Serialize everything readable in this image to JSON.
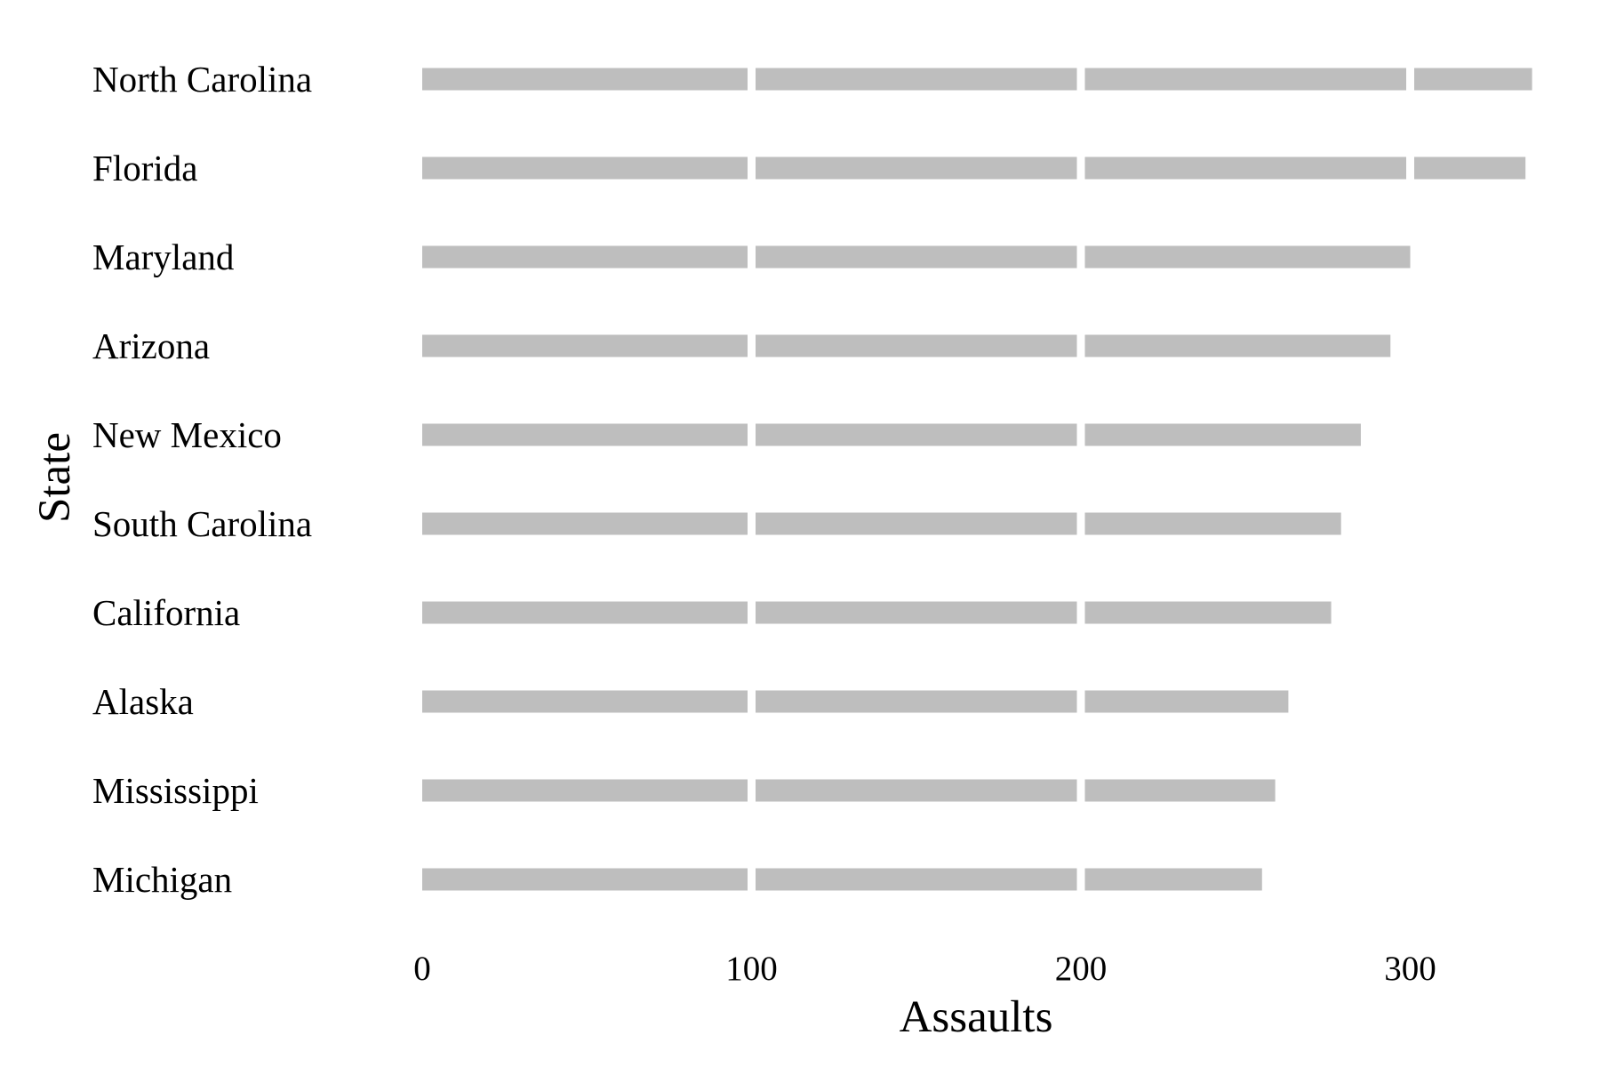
{
  "chart_data": {
    "type": "bar",
    "orientation": "horizontal",
    "title": "",
    "xlabel": "Assaults",
    "ylabel": "State",
    "categories": [
      "North Carolina",
      "Florida",
      "Maryland",
      "Arizona",
      "New Mexico",
      "South Carolina",
      "California",
      "Alaska",
      "Mississippi",
      "Michigan"
    ],
    "values": [
      337,
      335,
      300,
      294,
      285,
      279,
      276,
      263,
      259,
      255
    ],
    "xlim": [
      0,
      340
    ],
    "xticks": [
      "0",
      "100",
      "200",
      "300"
    ],
    "grid": false,
    "legend": "none",
    "bar_color": "#bebebe",
    "segment_separator_color": "#ffffff"
  }
}
